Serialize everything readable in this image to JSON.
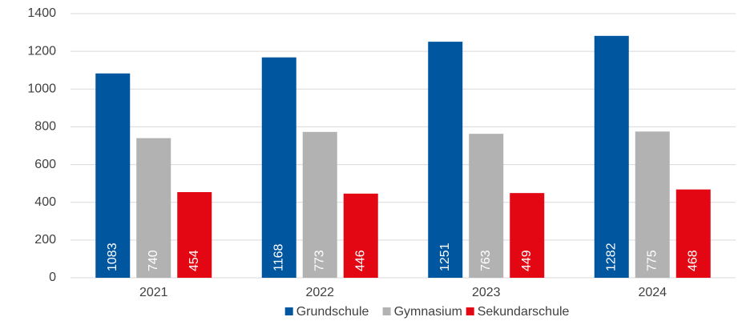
{
  "chart_data": {
    "type": "bar",
    "categories": [
      "2021",
      "2022",
      "2023",
      "2024"
    ],
    "series": [
      {
        "name": "Grundschule",
        "color": "#0057a0",
        "values": [
          1083,
          1168,
          1251,
          1282
        ]
      },
      {
        "name": "Gymnasium",
        "color": "#b2b2b2",
        "values": [
          740,
          773,
          763,
          775
        ]
      },
      {
        "name": "Sekundarschule",
        "color": "#e30613",
        "values": [
          454,
          446,
          449,
          468
        ]
      }
    ],
    "ylim": [
      0,
      1400
    ],
    "yticks": [
      0,
      200,
      400,
      600,
      800,
      1000,
      1200,
      1400
    ],
    "grid": true,
    "legend": "bottom"
  }
}
